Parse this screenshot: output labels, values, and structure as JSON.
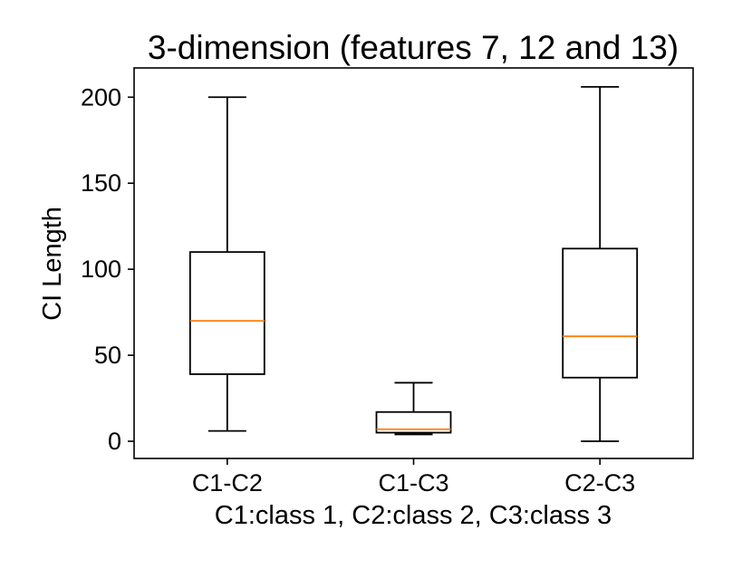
{
  "chart_data": {
    "type": "box",
    "title": "3-dimension (features 7, 12 and 13)",
    "xlabel": "C1:class 1, C2:class 2, C3:class 3",
    "ylabel": "CI Length",
    "ylim": [
      -10,
      217
    ],
    "y_ticks": [
      0,
      50,
      100,
      150,
      200
    ],
    "grid": false,
    "legend": "none",
    "categories": [
      "C1-C2",
      "C1-C3",
      "C2-C3"
    ],
    "boxes": [
      {
        "category": "C1-C2",
        "whisker_low": 6,
        "q1": 39,
        "median": 70,
        "q3": 110,
        "whisker_high": 200
      },
      {
        "category": "C1-C3",
        "whisker_low": 4,
        "q1": 5,
        "median": 7,
        "q3": 17,
        "whisker_high": 34
      },
      {
        "category": "C2-C3",
        "whisker_low": 0,
        "q1": 37,
        "median": 61,
        "q3": 112,
        "whisker_high": 206
      }
    ],
    "colors": {
      "box": "#000000",
      "median": "#ff7f0e"
    }
  }
}
